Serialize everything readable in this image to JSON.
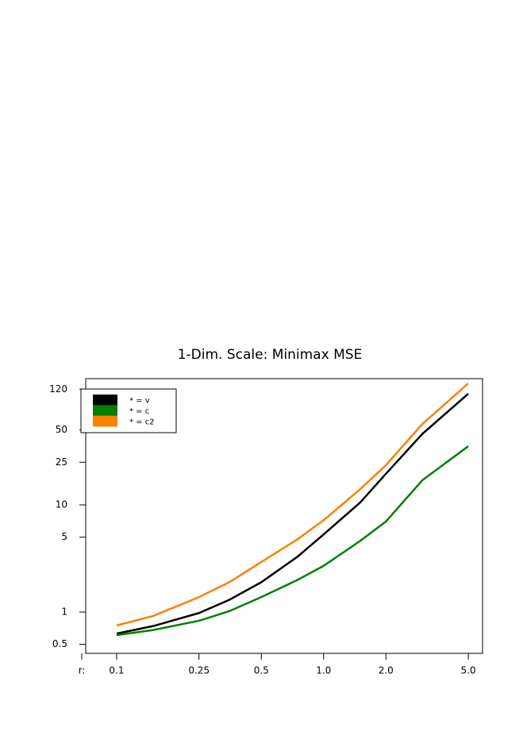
{
  "chart_data": {
    "type": "line",
    "title": "1-Dim. Scale: Minimax MSE",
    "xlabel": "r:",
    "x": [
      0.1,
      0.15,
      0.25,
      0.35,
      0.5,
      0.75,
      1.0,
      1.5,
      2.0,
      3.0,
      5.0
    ],
    "series": [
      {
        "name": "* = v",
        "color": "#000000",
        "values": [
          0.63,
          0.74,
          0.98,
          1.3,
          1.9,
          3.3,
          5.3,
          10.5,
          19.5,
          46,
          109
        ]
      },
      {
        "name": "* = c",
        "color": "#008000",
        "values": [
          0.61,
          0.68,
          0.83,
          1.02,
          1.38,
          2.0,
          2.7,
          4.6,
          7.0,
          17,
          35.3
        ]
      },
      {
        "name": "* = c2",
        "color": "#ff8000",
        "values": [
          0.75,
          0.92,
          1.38,
          1.9,
          2.93,
          4.8,
          7.2,
          14,
          23.5,
          57,
          136
        ]
      }
    ],
    "xscale": "log",
    "yscale": "log",
    "xlim": [
      0.0709,
      5.86
    ],
    "ylim": [
      0.412,
      150.6
    ],
    "xticks": [
      0.1,
      0.25,
      0.5,
      {
        "value": 1,
        "label": "1.0"
      },
      {
        "value": 2,
        "label": "2.0"
      },
      {
        "value": 5,
        "label": "5.0"
      }
    ],
    "yticks": [
      0.5,
      1,
      5,
      10,
      25,
      50,
      120
    ],
    "legend": "top-left"
  }
}
